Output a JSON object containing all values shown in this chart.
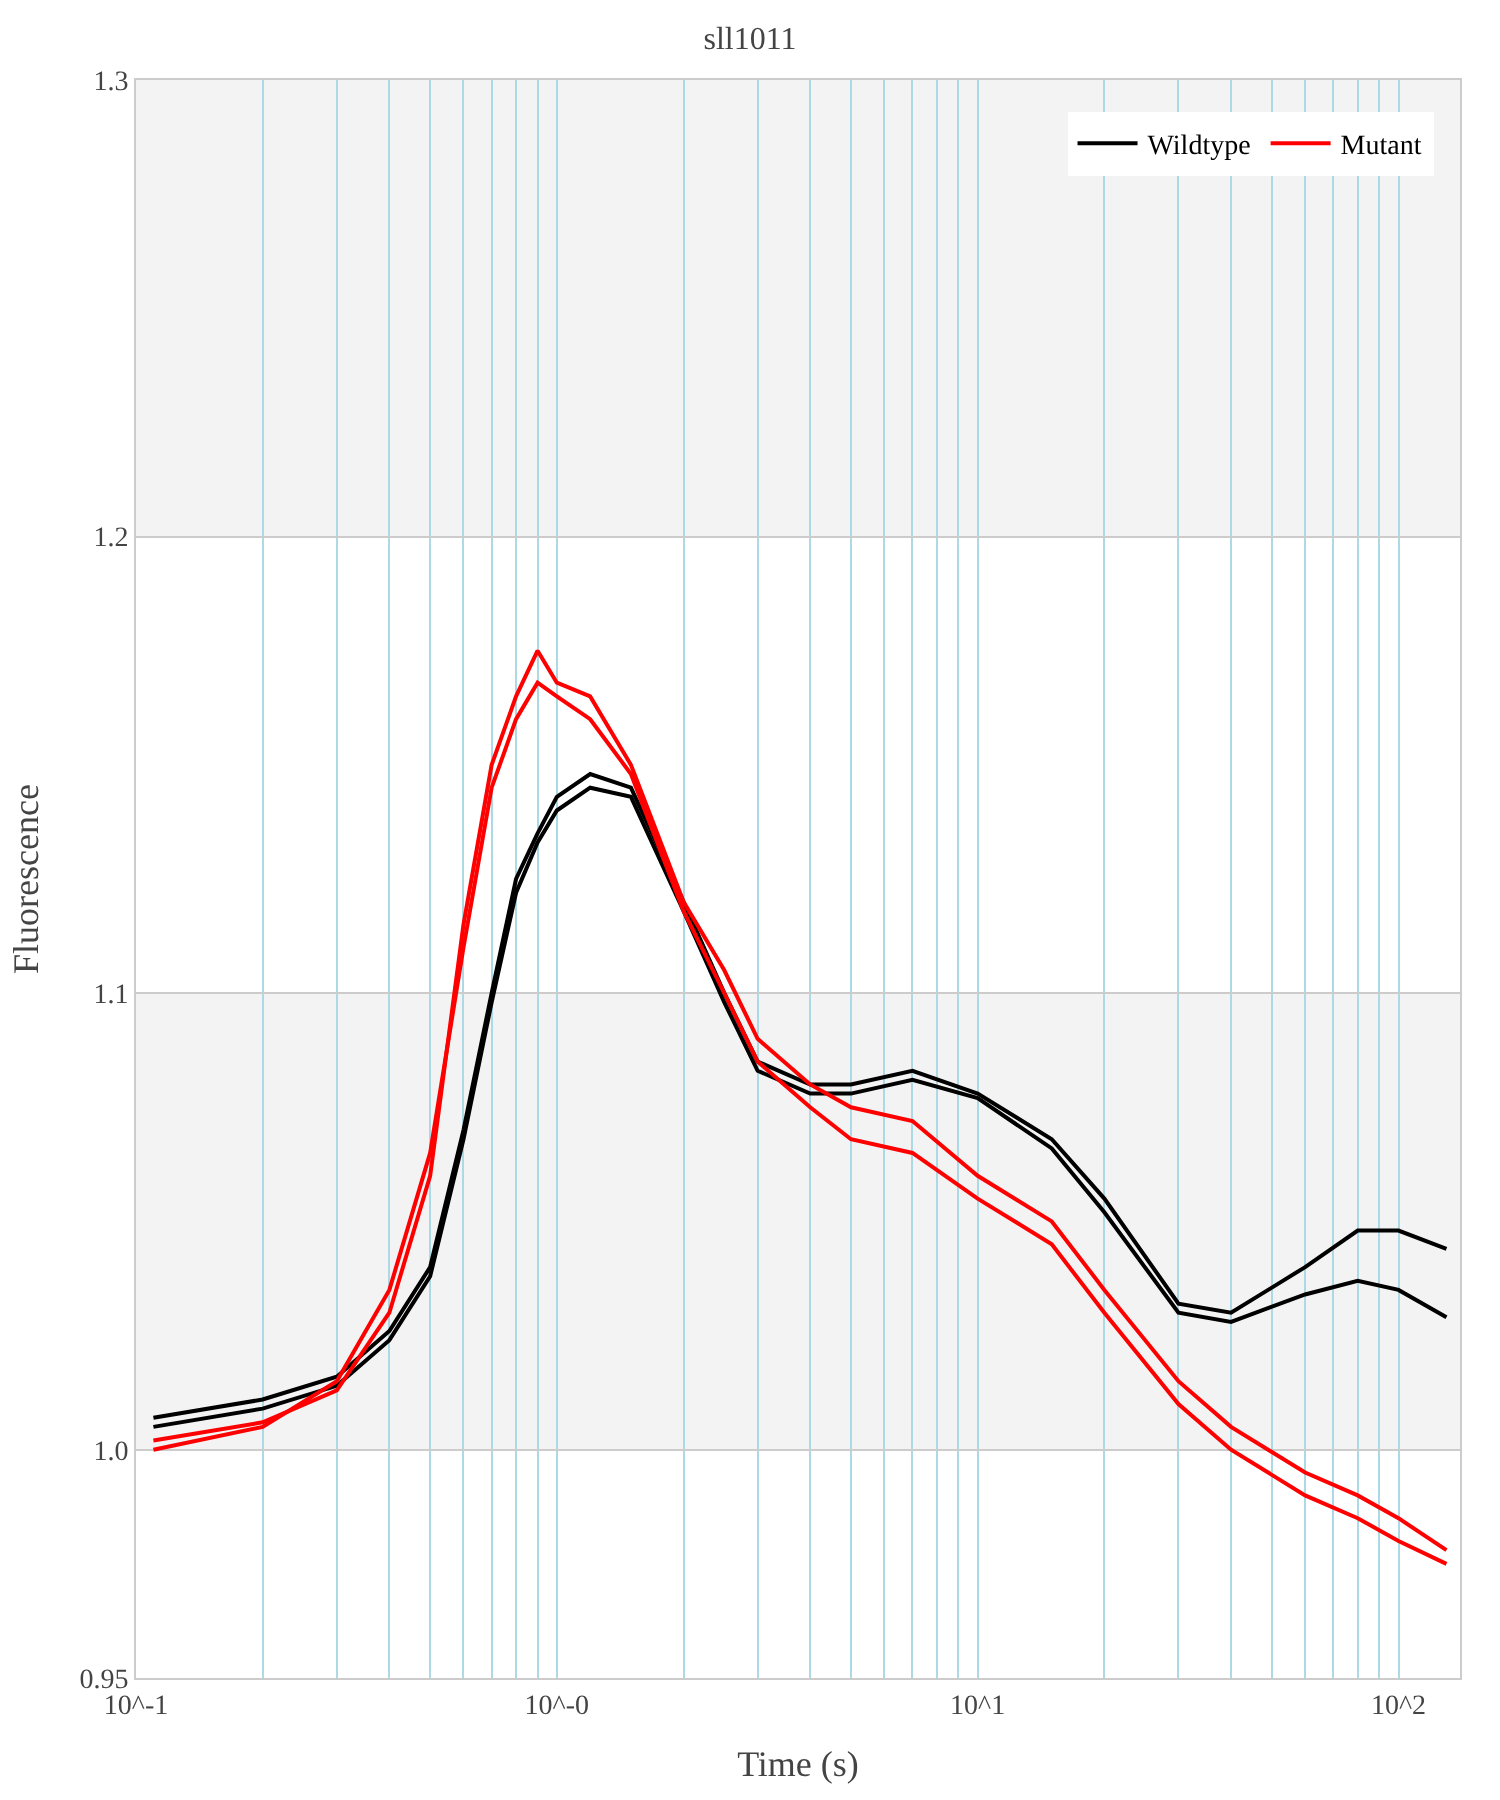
{
  "chart_data": {
    "type": "line",
    "title": "sll1011",
    "xlabel": "Time (s)",
    "ylabel": "Fluorescence",
    "log": "x",
    "x": [
      0.11,
      0.2,
      0.3,
      0.4,
      0.5,
      0.6,
      0.7,
      0.8,
      0.9,
      1.0,
      1.2,
      1.5,
      2,
      2.5,
      3,
      4,
      5,
      7,
      10,
      15,
      20,
      30,
      40,
      60,
      80,
      100,
      130
    ],
    "series": [
      {
        "name": "Wildtype",
        "color": "#000000",
        "values": [
          1.007,
          1.011,
          1.016,
          1.026,
          1.04,
          1.07,
          1.1,
          1.125,
          1.135,
          1.143,
          1.148,
          1.145,
          1.12,
          1.1,
          1.085,
          1.08,
          1.08,
          1.083,
          1.078,
          1.068,
          1.055,
          1.032,
          1.03,
          1.04,
          1.048,
          1.048,
          1.044
        ]
      },
      {
        "color": "#000000",
        "values": [
          1.005,
          1.009,
          1.014,
          1.024,
          1.038,
          1.068,
          1.098,
          1.122,
          1.133,
          1.14,
          1.145,
          1.143,
          1.118,
          1.098,
          1.083,
          1.078,
          1.078,
          1.081,
          1.077,
          1.066,
          1.052,
          1.03,
          1.028,
          1.034,
          1.037,
          1.035,
          1.029
        ]
      },
      {
        "name": "Mutant",
        "color": "#ff0000",
        "values": [
          1.002,
          1.006,
          1.013,
          1.03,
          1.06,
          1.115,
          1.15,
          1.165,
          1.175,
          1.168,
          1.165,
          1.15,
          1.12,
          1.105,
          1.09,
          1.08,
          1.075,
          1.072,
          1.06,
          1.05,
          1.035,
          1.015,
          1.005,
          0.995,
          0.99,
          0.985,
          0.978
        ]
      },
      {
        "color": "#ff0000",
        "values": [
          1.0,
          1.005,
          1.015,
          1.035,
          1.065,
          1.11,
          1.145,
          1.16,
          1.168,
          1.165,
          1.16,
          1.148,
          1.118,
          1.1,
          1.085,
          1.075,
          1.068,
          1.065,
          1.055,
          1.045,
          1.03,
          1.01,
          1.0,
          0.99,
          0.985,
          0.98,
          0.975
        ]
      }
    ],
    "xlim": [
      0.1,
      140
    ],
    "xticks": [
      {
        "value": 0.1,
        "label": "10^-1"
      },
      {
        "value": 0.2,
        "label": null
      },
      {
        "value": 0.3,
        "label": null
      },
      {
        "value": 0.4,
        "label": null
      },
      {
        "value": 0.5,
        "label": null
      },
      {
        "value": 0.6,
        "label": null
      },
      {
        "value": 0.7,
        "label": null
      },
      {
        "value": 0.8,
        "label": null
      },
      {
        "value": 0.9,
        "label": null
      },
      {
        "value": 1,
        "label": "10^-0"
      },
      {
        "value": 2,
        "label": null
      },
      {
        "value": 3,
        "label": null
      },
      {
        "value": 4,
        "label": null
      },
      {
        "value": 5,
        "label": null
      },
      {
        "value": 6,
        "label": null
      },
      {
        "value": 7,
        "label": null
      },
      {
        "value": 8,
        "label": null
      },
      {
        "value": 9,
        "label": null
      },
      {
        "value": 10,
        "label": "10^1"
      },
      {
        "value": 20,
        "label": null
      },
      {
        "value": 30,
        "label": null
      },
      {
        "value": 40,
        "label": null
      },
      {
        "value": 50,
        "label": null
      },
      {
        "value": 60,
        "label": null
      },
      {
        "value": 70,
        "label": null
      },
      {
        "value": 80,
        "label": null
      },
      {
        "value": 90,
        "label": null
      },
      {
        "value": 100,
        "label": "10^2"
      }
    ],
    "ylim": [
      0.95,
      1.3
    ],
    "yticks": [
      0.95,
      {
        "value": 1.0,
        "label": "1.0"
      },
      1.1,
      1.2,
      1.3
    ],
    "bands": [
      {
        "axis": "y",
        "from": 1.0,
        "to": 1.1,
        "color": "#f3f3f3"
      },
      {
        "axis": "y",
        "from": 1.2,
        "to": 1.3,
        "color": "#f3f3f3"
      }
    ],
    "grid": true,
    "legend": "top right",
    "marker": "none",
    "line_style": "solid"
  }
}
